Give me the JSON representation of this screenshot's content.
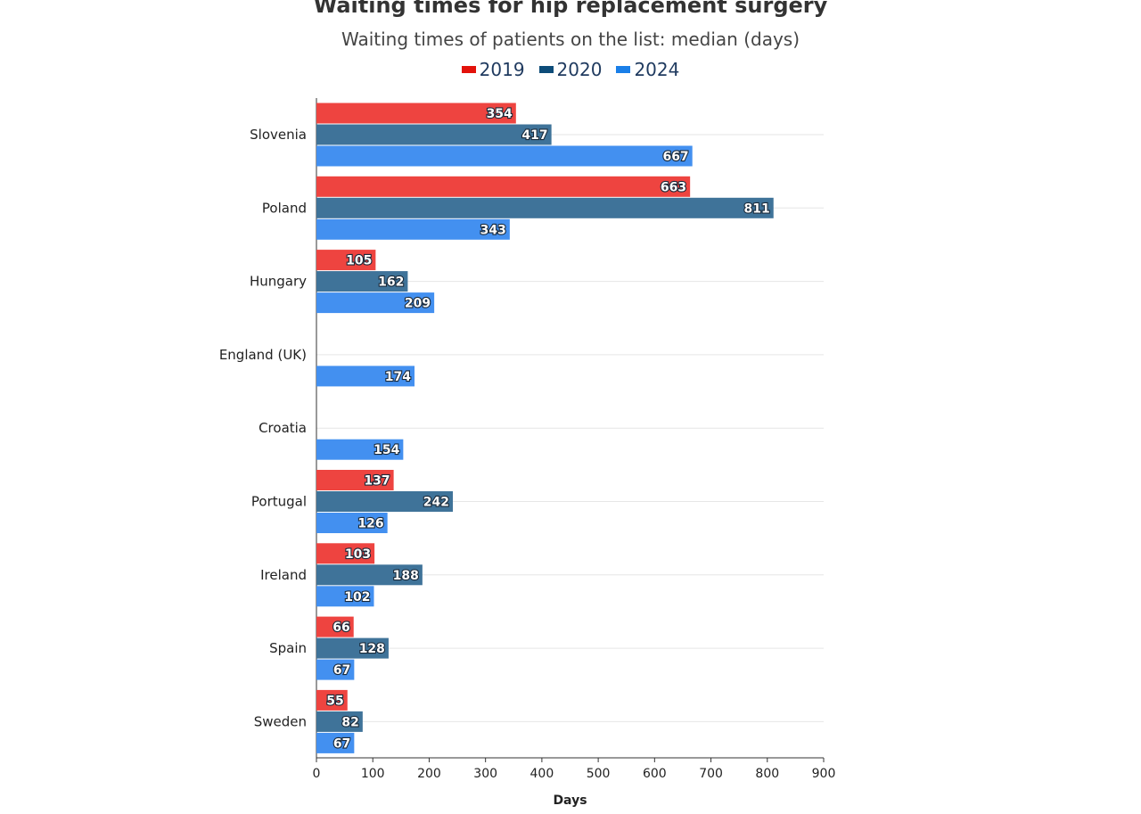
{
  "chart_data": {
    "type": "bar",
    "orientation": "horizontal",
    "title": "Waiting times for hip replacement surgery",
    "subtitle": "Waiting times of patients on the list: median (days)",
    "xlabel": "Days",
    "ylabel": "",
    "xlim": [
      0,
      900
    ],
    "xticks": [
      0,
      100,
      200,
      300,
      400,
      500,
      600,
      700,
      800,
      900
    ],
    "grid": true,
    "legend_position": "top-center",
    "categories": [
      "Slovenia",
      "Poland",
      "Hungary",
      "England (UK)",
      "Croatia",
      "Portugal",
      "Ireland",
      "Spain",
      "Sweden"
    ],
    "series": [
      {
        "name": "2019",
        "color": "#ee4440",
        "legend_color": "#e3120b",
        "values": [
          354,
          663,
          105,
          null,
          null,
          137,
          103,
          66,
          55
        ]
      },
      {
        "name": "2020",
        "color": "#3f7399",
        "legend_color": "#0d4c79",
        "values": [
          417,
          811,
          162,
          null,
          null,
          242,
          188,
          128,
          82
        ]
      },
      {
        "name": "2024",
        "color": "#4390f0",
        "legend_color": "#1a7fe8",
        "values": [
          667,
          343,
          209,
          174,
          154,
          126,
          102,
          67,
          67
        ]
      }
    ]
  }
}
